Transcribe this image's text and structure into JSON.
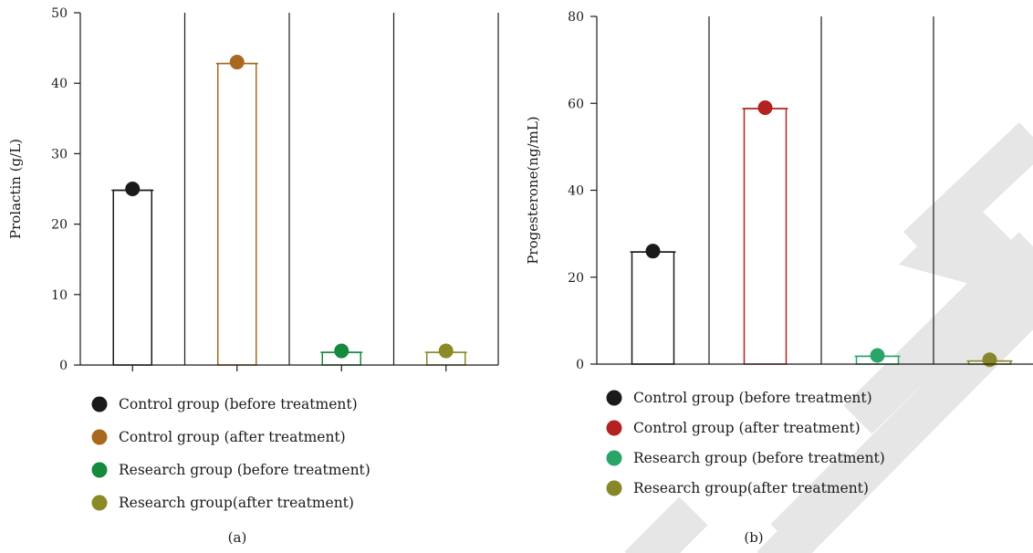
{
  "watermark_color": "#e6e6e6",
  "chart_data": [
    {
      "type": "bar",
      "panel_label": "(a)",
      "ylabel": "Prolactin (g/L)",
      "ylim": [
        0,
        50
      ],
      "yticks": [
        0,
        10,
        20,
        30,
        40,
        50
      ],
      "categories": [
        "Control group (before treatment)",
        "Control group (after treatment)",
        "Research group (before treatment)",
        "Research group(after treatment)"
      ],
      "values": [
        24.8,
        42.8,
        1.8,
        1.8
      ],
      "points": [
        25,
        43,
        2,
        2
      ],
      "colors": [
        "#1a1a1a",
        "#a8681e",
        "#158a3c",
        "#8a8a26"
      ],
      "legend_position": "bottom"
    },
    {
      "type": "bar",
      "panel_label": "(b)",
      "ylabel": "Progesterone(ng/mL)",
      "ylim": [
        0,
        80
      ],
      "yticks": [
        0,
        20,
        40,
        60,
        80
      ],
      "categories": [
        "Control group (before treatment)",
        "Control group (after treatment)",
        "Research group (before treatment)",
        "Research group(after treatment)"
      ],
      "values": [
        25.8,
        58.8,
        1.8,
        0.7
      ],
      "points": [
        26,
        59,
        2,
        1
      ],
      "colors": [
        "#1a1a1a",
        "#b52020",
        "#2aa56a",
        "#86862a"
      ],
      "legend_position": "bottom"
    }
  ]
}
